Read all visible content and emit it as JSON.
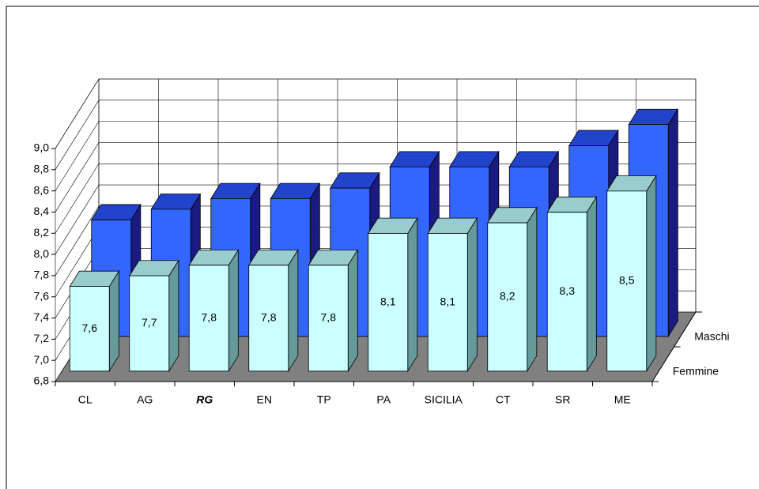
{
  "chart_data": {
    "type": "bar3d",
    "categories": [
      "CL",
      "AG",
      "RG",
      "EN",
      "TP",
      "PA",
      "SICILIA",
      "CT",
      "SR",
      "ME"
    ],
    "highlight_category": "RG",
    "series": [
      {
        "name": "Femmine",
        "color": "#ccffff",
        "side_color": "#669999",
        "top_color": "#99cccc",
        "values": [
          7.6,
          7.7,
          7.8,
          7.8,
          7.8,
          8.1,
          8.1,
          8.2,
          8.3,
          8.5
        ],
        "value_labels": [
          "7,6",
          "7,7",
          "7,8",
          "7,8",
          "7,8",
          "8,1",
          "8,1",
          "8,2",
          "8,3",
          "8,5"
        ]
      },
      {
        "name": "Maschi",
        "color": "#3366ff",
        "side_color": "#1a1a80",
        "top_color": "#2244cc",
        "values": [
          7.9,
          8.0,
          8.1,
          8.1,
          8.2,
          8.4,
          8.4,
          8.4,
          8.6,
          8.8
        ],
        "value_labels": [
          "7,9",
          "8,0",
          "8,1",
          "8,1",
          "8,2",
          "8,4",
          "8,4",
          "8,4",
          "8,6",
          "8,8"
        ]
      }
    ],
    "ylim": [
      6.8,
      9.0
    ],
    "yticks": [
      {
        "value": 6.8,
        "label": "6,8"
      },
      {
        "value": 7.0,
        "label": "7,0"
      },
      {
        "value": 7.2,
        "label": "7,2"
      },
      {
        "value": 7.4,
        "label": "7,4"
      },
      {
        "value": 7.6,
        "label": "7,6"
      },
      {
        "value": 7.8,
        "label": "7,8"
      },
      {
        "value": 8.0,
        "label": "8,0"
      },
      {
        "value": 8.2,
        "label": "8,2"
      },
      {
        "value": 8.4,
        "label": "8,4"
      },
      {
        "value": 8.6,
        "label": "8,6"
      },
      {
        "value": 8.8,
        "label": "8,8"
      },
      {
        "value": 9.0,
        "label": "9,0"
      }
    ],
    "grid": true,
    "floor_color": "#808080"
  }
}
